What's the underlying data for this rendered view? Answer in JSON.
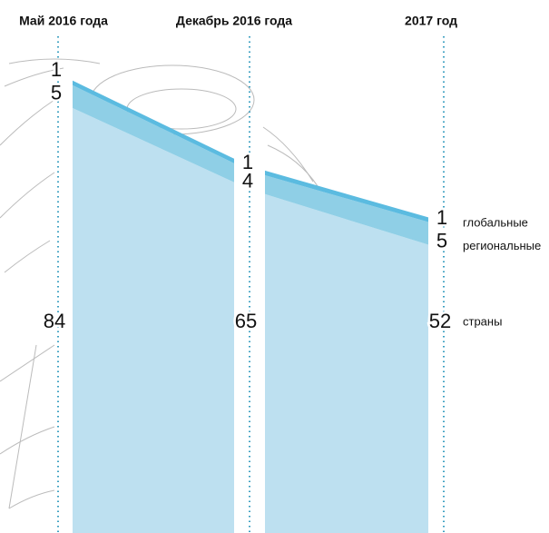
{
  "chart_data": {
    "type": "stacked_area",
    "categories": [
      "Май 2016 года",
      "Декабрь 2016 года",
      "2017 год"
    ],
    "series": [
      {
        "name": "страны",
        "color": "#bde0f0",
        "values": [
          84,
          65,
          52
        ]
      },
      {
        "name": "региональные",
        "color": "#8fcfe6",
        "values": [
          5,
          4,
          5
        ]
      },
      {
        "name": "глобальные",
        "color": "#5bbbe0",
        "values": [
          1,
          1,
          1
        ]
      }
    ]
  }
}
